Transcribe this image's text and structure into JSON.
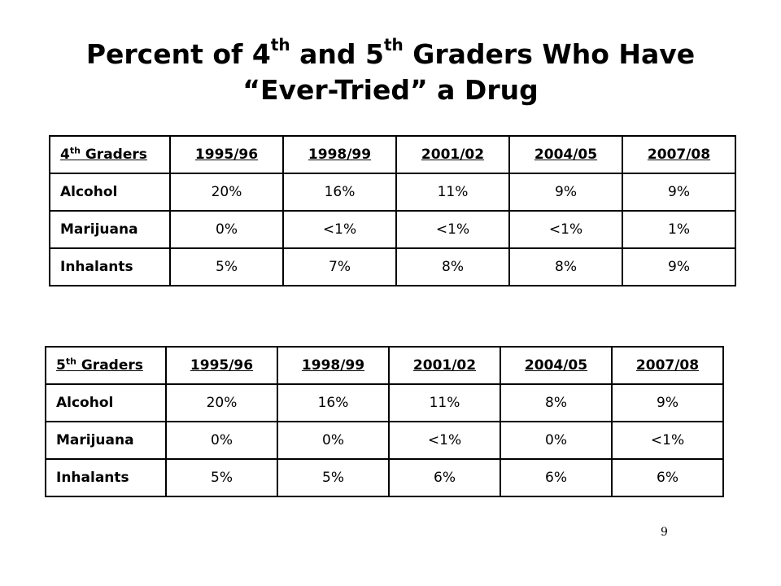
{
  "title": {
    "part1": "Percent of  4",
    "sup1": "th",
    "part2": " and 5",
    "sup2": "th",
    "part3": " Graders Who Have",
    "line2": "“Ever-Tried” a Drug"
  },
  "tables": [
    {
      "grade_num": "4",
      "grade_sup": "th",
      "grade_word": " Graders",
      "years": [
        "1995/96",
        "1998/99",
        "2001/02",
        "2004/05",
        "2007/08"
      ],
      "rows": [
        {
          "label": "Alcohol",
          "values": [
            "20%",
            "16%",
            "11%",
            "9%",
            "9%"
          ]
        },
        {
          "label": "Marijuana",
          "values": [
            "0%",
            "<1%",
            "<1%",
            "<1%",
            "1%"
          ]
        },
        {
          "label": "Inhalants",
          "values": [
            "5%",
            "7%",
            "8%",
            "8%",
            "9%"
          ]
        }
      ]
    },
    {
      "grade_num": "5",
      "grade_sup": "th",
      "grade_word": " Graders",
      "years": [
        "1995/96",
        "1998/99",
        "2001/02",
        "2004/05",
        "2007/08"
      ],
      "rows": [
        {
          "label": "Alcohol",
          "values": [
            "20%",
            "16%",
            "11%",
            "8%",
            "9%"
          ]
        },
        {
          "label": "Marijuana",
          "values": [
            "0%",
            "0%",
            "<1%",
            "0%",
            "<1%"
          ]
        },
        {
          "label": "Inhalants",
          "values": [
            "5%",
            "5%",
            "6%",
            "6%",
            "6%"
          ]
        }
      ]
    }
  ],
  "page_number": "9"
}
